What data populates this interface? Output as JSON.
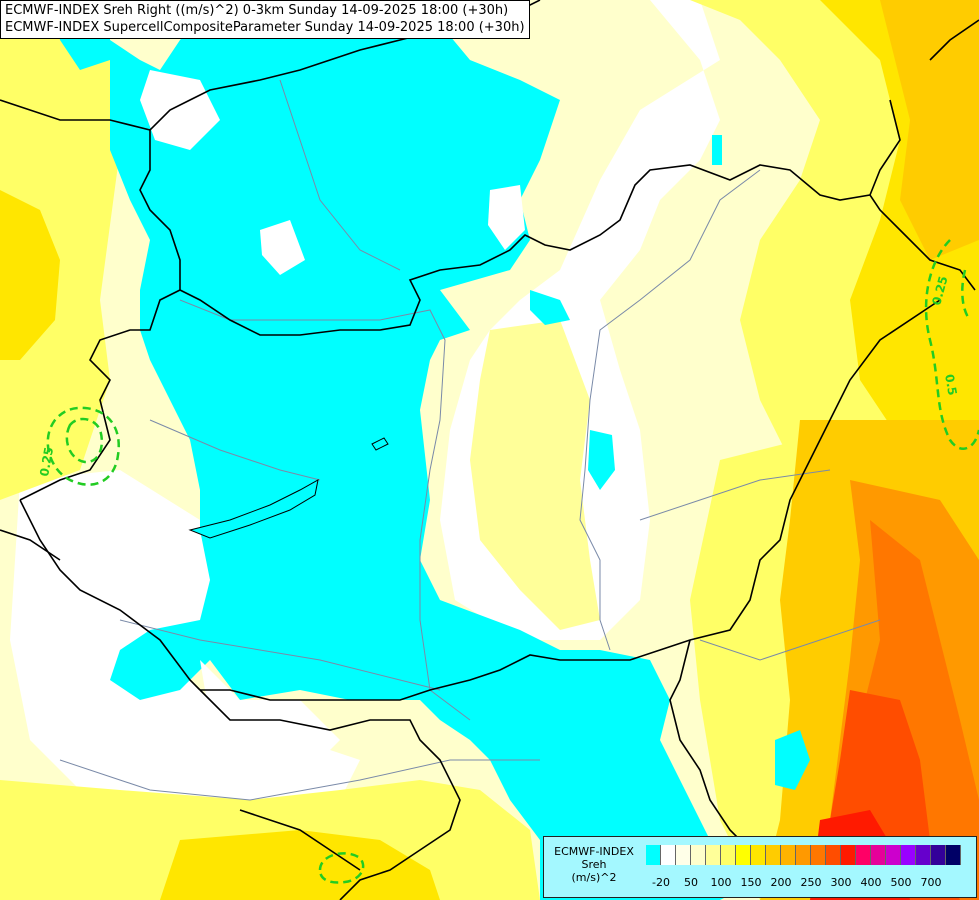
{
  "header": {
    "line1": "ECMWF-INDEX Sreh Right ((m/s)^2) 0-3km Sunday 14-09-2025 18:00 (+30h)",
    "line2": "ECMWF-INDEX SupercellCompositeParameter Sunday 14-09-2025 18:00 (+30h)"
  },
  "legend": {
    "title_lines": [
      "ECMWF-INDEX",
      "Sreh",
      "(m/s)^2"
    ],
    "colors": [
      "#00ffff",
      "#ffffff",
      "#ffffe8",
      "#ffffcc",
      "#ffff99",
      "#ffff66",
      "#ffff00",
      "#ffe600",
      "#ffcc00",
      "#ffb300",
      "#ff9900",
      "#ff7700",
      "#ff4d00",
      "#ff1a00",
      "#ff0066",
      "#e60099",
      "#cc00cc",
      "#9900ff",
      "#6600cc",
      "#330099",
      "#000066"
    ],
    "ticks": [
      "-20",
      "50",
      "100",
      "150",
      "200",
      "250",
      "300",
      "400",
      "500",
      "700"
    ]
  },
  "contours": {
    "labels": [
      "0.25",
      "0.25",
      "0.5"
    ],
    "color": "#22cc22"
  },
  "colors": {
    "negative_fill": "#00ffff",
    "border": "#000000",
    "rivers": "#7a8aa8"
  }
}
